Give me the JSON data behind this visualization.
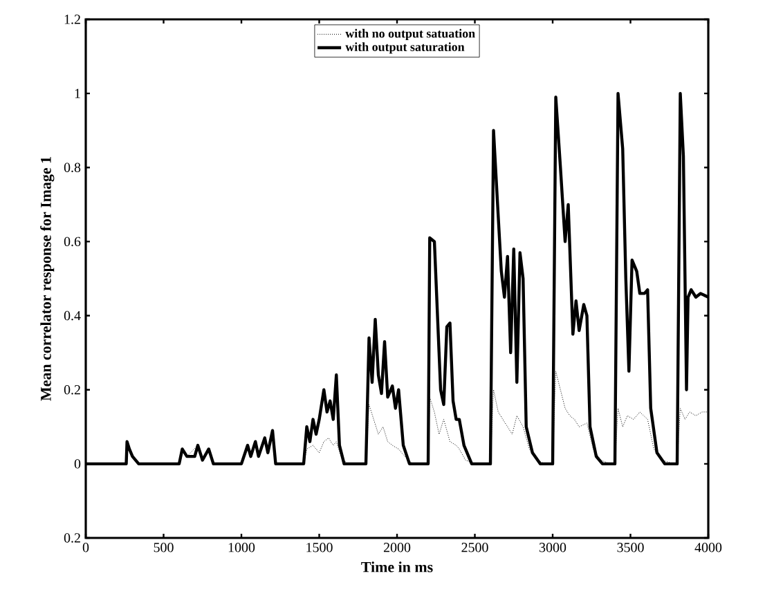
{
  "chart_data": {
    "type": "line",
    "xlabel": "Time in ms",
    "ylabel": "Mean correlator response for Image 1",
    "xlim": [
      0,
      4000
    ],
    "ylim": [
      -0.2,
      1.2
    ],
    "xticks": [
      0,
      500,
      1000,
      1500,
      2000,
      2500,
      3000,
      3500,
      4000
    ],
    "yticks": [
      {
        "value": -0.2,
        "label": "0.2"
      },
      0,
      0.2,
      0.4,
      0.6,
      0.8,
      1,
      1.2
    ],
    "legend": "top",
    "grid": false,
    "marker": "none",
    "series": [
      {
        "name": "with no output satuation",
        "color": "#000000",
        "line_style": "dotted",
        "x": [
          0,
          260,
          265,
          280,
          300,
          340,
          600,
          620,
          650,
          720,
          750,
          790,
          820,
          1000,
          1040,
          1060,
          1090,
          1110,
          1150,
          1170,
          1200,
          1220,
          1400,
          1420,
          1460,
          1500,
          1530,
          1560,
          1590,
          1610,
          1640,
          1680,
          1800,
          1820,
          1850,
          1880,
          1910,
          1940,
          1970,
          2010,
          2050,
          2100,
          2200,
          2210,
          2240,
          2270,
          2300,
          2340,
          2380,
          2400,
          2440,
          2500,
          2600,
          2620,
          2650,
          2680,
          2710,
          2740,
          2770,
          2810,
          2850,
          2900,
          2950,
          3000,
          3020,
          3050,
          3080,
          3110,
          3140,
          3170,
          3220,
          3260,
          3310,
          3370,
          3400,
          3420,
          3450,
          3480,
          3520,
          3560,
          3610,
          3650,
          3700,
          3780,
          3800,
          3820,
          3850,
          3880,
          3920,
          3960,
          4000
        ],
        "values": [
          0,
          0,
          0.06,
          0.04,
          0.02,
          0,
          0,
          0.04,
          0.02,
          0.05,
          0.01,
          0.04,
          0,
          0,
          0.05,
          0.02,
          0.06,
          0.02,
          0.07,
          0.03,
          0.09,
          0,
          0,
          0.04,
          0.05,
          0.03,
          0.06,
          0.07,
          0.05,
          0.06,
          0.02,
          0,
          0,
          0.16,
          0.12,
          0.08,
          0.1,
          0.06,
          0.05,
          0.04,
          0.02,
          0,
          0,
          0.18,
          0.14,
          0.08,
          0.12,
          0.06,
          0.05,
          0.04,
          0.01,
          0,
          0,
          0.2,
          0.14,
          0.12,
          0.1,
          0.08,
          0.13,
          0.1,
          0.04,
          0.01,
          0,
          0,
          0.25,
          0.2,
          0.15,
          0.13,
          0.12,
          0.1,
          0.11,
          0.04,
          0.01,
          0,
          0,
          0.15,
          0.1,
          0.13,
          0.12,
          0.14,
          0.12,
          0.04,
          0.01,
          0,
          0,
          0.15,
          0.12,
          0.14,
          0.13,
          0.14,
          0.14
        ]
      },
      {
        "name": "with output saturation",
        "color": "#000000",
        "line_style": "solid",
        "x": [
          0,
          260,
          265,
          280,
          300,
          320,
          340,
          600,
          620,
          650,
          700,
          720,
          750,
          790,
          820,
          1000,
          1040,
          1060,
          1090,
          1110,
          1150,
          1170,
          1200,
          1220,
          1400,
          1420,
          1440,
          1460,
          1480,
          1500,
          1530,
          1550,
          1570,
          1590,
          1610,
          1630,
          1660,
          1800,
          1820,
          1840,
          1860,
          1880,
          1900,
          1920,
          1940,
          1970,
          1990,
          2010,
          2040,
          2080,
          2200,
          2210,
          2240,
          2260,
          2280,
          2300,
          2320,
          2340,
          2360,
          2380,
          2400,
          2430,
          2480,
          2600,
          2620,
          2650,
          2670,
          2690,
          2710,
          2730,
          2750,
          2770,
          2790,
          2810,
          2830,
          2870,
          2920,
          3000,
          3020,
          3050,
          3080,
          3100,
          3130,
          3150,
          3170,
          3200,
          3220,
          3240,
          3280,
          3320,
          3400,
          3420,
          3450,
          3470,
          3490,
          3510,
          3540,
          3560,
          3590,
          3610,
          3630,
          3670,
          3720,
          3800,
          3820,
          3840,
          3860,
          3870,
          3890,
          3920,
          3950,
          4000
        ],
        "values": [
          0,
          0,
          0.06,
          0.04,
          0.02,
          0.01,
          0,
          0,
          0.04,
          0.02,
          0.02,
          0.05,
          0.01,
          0.04,
          0,
          0,
          0.05,
          0.02,
          0.06,
          0.02,
          0.07,
          0.03,
          0.09,
          0,
          0,
          0.1,
          0.06,
          0.12,
          0.08,
          0.12,
          0.2,
          0.14,
          0.17,
          0.12,
          0.24,
          0.05,
          0,
          0,
          0.34,
          0.22,
          0.39,
          0.24,
          0.19,
          0.33,
          0.18,
          0.21,
          0.15,
          0.2,
          0.05,
          0,
          0,
          0.61,
          0.6,
          0.4,
          0.2,
          0.16,
          0.37,
          0.38,
          0.17,
          0.12,
          0.12,
          0.05,
          0,
          0,
          0.9,
          0.67,
          0.52,
          0.45,
          0.56,
          0.3,
          0.58,
          0.22,
          0.57,
          0.5,
          0.1,
          0.03,
          0,
          0,
          0.99,
          0.8,
          0.6,
          0.7,
          0.35,
          0.44,
          0.36,
          0.43,
          0.4,
          0.1,
          0.02,
          0,
          0,
          1.0,
          0.85,
          0.5,
          0.25,
          0.55,
          0.52,
          0.46,
          0.46,
          0.47,
          0.15,
          0.03,
          0,
          0,
          1.0,
          0.83,
          0.2,
          0.45,
          0.47,
          0.45,
          0.46,
          0.45
        ]
      }
    ]
  }
}
